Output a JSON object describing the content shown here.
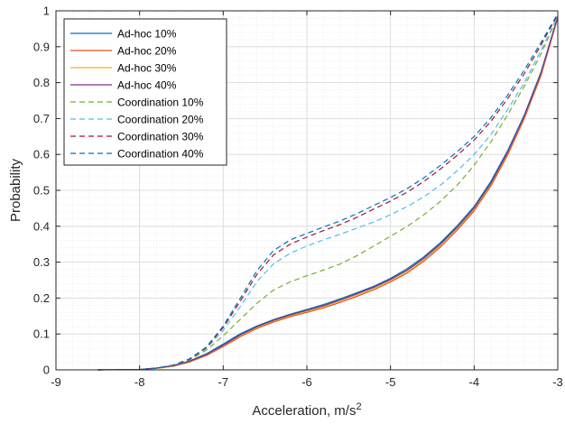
{
  "chart_data": {
    "type": "line",
    "title": "",
    "xlabel": "Acceleration, m/s",
    "xlabel_sup": "2",
    "ylabel": "Probability",
    "xlim": [
      -9,
      -3
    ],
    "ylim": [
      0,
      1
    ],
    "xticks": [
      -9,
      -8,
      -7,
      -6,
      -5,
      -4,
      -3
    ],
    "yticks": [
      0,
      0.1,
      0.2,
      0.3,
      0.4,
      0.5,
      0.6,
      0.7,
      0.8,
      0.9,
      1
    ],
    "xtick_labels": [
      "-9",
      "-8",
      "-7",
      "-6",
      "-5",
      "-4",
      "-3"
    ],
    "ytick_labels": [
      "0",
      "0.1",
      "0.2",
      "0.3",
      "0.4",
      "0.5",
      "0.6",
      "0.7",
      "0.8",
      "0.9",
      "1"
    ],
    "grid": true,
    "minor_grid": true,
    "legend_position": "top-left",
    "x": [
      -8.5,
      -8.0,
      -7.8,
      -7.6,
      -7.4,
      -7.2,
      -7.0,
      -6.8,
      -6.6,
      -6.4,
      -6.2,
      -6.0,
      -5.8,
      -5.6,
      -5.4,
      -5.2,
      -5.0,
      -4.8,
      -4.6,
      -4.4,
      -4.2,
      -4.0,
      -3.8,
      -3.6,
      -3.4,
      -3.2,
      -3.0
    ],
    "series": [
      {
        "name": "Ad-hoc 10%",
        "color": "#0072BD",
        "dash": false,
        "values": [
          0,
          0.001,
          0.005,
          0.012,
          0.025,
          0.045,
          0.072,
          0.1,
          0.122,
          0.14,
          0.155,
          0.168,
          0.182,
          0.198,
          0.215,
          0.233,
          0.255,
          0.282,
          0.315,
          0.355,
          0.402,
          0.455,
          0.525,
          0.61,
          0.71,
          0.83,
          0.985
        ]
      },
      {
        "name": "Ad-hoc 20%",
        "color": "#D95319",
        "dash": false,
        "values": [
          0,
          0.001,
          0.004,
          0.01,
          0.022,
          0.04,
          0.065,
          0.092,
          0.115,
          0.133,
          0.148,
          0.16,
          0.173,
          0.188,
          0.205,
          0.223,
          0.245,
          0.27,
          0.303,
          0.343,
          0.39,
          0.443,
          0.512,
          0.598,
          0.7,
          0.82,
          0.98
        ]
      },
      {
        "name": "Ad-hoc 30%",
        "color": "#EDB120",
        "dash": false,
        "values": [
          0,
          0.001,
          0.004,
          0.01,
          0.023,
          0.042,
          0.068,
          0.095,
          0.118,
          0.136,
          0.151,
          0.163,
          0.176,
          0.192,
          0.209,
          0.227,
          0.249,
          0.275,
          0.308,
          0.348,
          0.395,
          0.448,
          0.517,
          0.603,
          0.705,
          0.825,
          0.982
        ]
      },
      {
        "name": "Ad-hoc 40%",
        "color": "#7E2F8E",
        "dash": false,
        "values": [
          0,
          0.001,
          0.005,
          0.011,
          0.024,
          0.043,
          0.069,
          0.097,
          0.12,
          0.138,
          0.153,
          0.166,
          0.179,
          0.195,
          0.212,
          0.23,
          0.252,
          0.278,
          0.311,
          0.351,
          0.398,
          0.451,
          0.52,
          0.606,
          0.707,
          0.827,
          0.983
        ]
      },
      {
        "name": "Coordination 10%",
        "color": "#77AC30",
        "dash": true,
        "values": [
          0,
          0.001,
          0.005,
          0.012,
          0.028,
          0.055,
          0.095,
          0.14,
          0.185,
          0.222,
          0.245,
          0.262,
          0.278,
          0.295,
          0.318,
          0.345,
          0.372,
          0.4,
          0.432,
          0.47,
          0.515,
          0.57,
          0.635,
          0.71,
          0.79,
          0.88,
          0.985
        ]
      },
      {
        "name": "Coordination 20%",
        "color": "#4DBEEE",
        "dash": true,
        "values": [
          0,
          0.001,
          0.005,
          0.013,
          0.03,
          0.06,
          0.11,
          0.175,
          0.245,
          0.295,
          0.325,
          0.345,
          0.362,
          0.378,
          0.395,
          0.412,
          0.432,
          0.455,
          0.482,
          0.515,
          0.555,
          0.6,
          0.655,
          0.725,
          0.8,
          0.89,
          0.985
        ]
      },
      {
        "name": "Coordination 30%",
        "color": "#A2142F",
        "dash": true,
        "values": [
          0,
          0.001,
          0.005,
          0.013,
          0.03,
          0.062,
          0.118,
          0.19,
          0.265,
          0.32,
          0.35,
          0.37,
          0.388,
          0.405,
          0.425,
          0.448,
          0.47,
          0.495,
          0.525,
          0.56,
          0.598,
          0.64,
          0.692,
          0.755,
          0.825,
          0.905,
          0.99
        ]
      },
      {
        "name": "Coordination 40%",
        "color": "#0072BD",
        "dash": true,
        "values": [
          0,
          0.001,
          0.005,
          0.013,
          0.031,
          0.064,
          0.122,
          0.198,
          0.275,
          0.332,
          0.362,
          0.38,
          0.398,
          0.415,
          0.435,
          0.458,
          0.48,
          0.505,
          0.535,
          0.57,
          0.608,
          0.65,
          0.702,
          0.765,
          0.835,
          0.912,
          0.992
        ]
      }
    ]
  }
}
